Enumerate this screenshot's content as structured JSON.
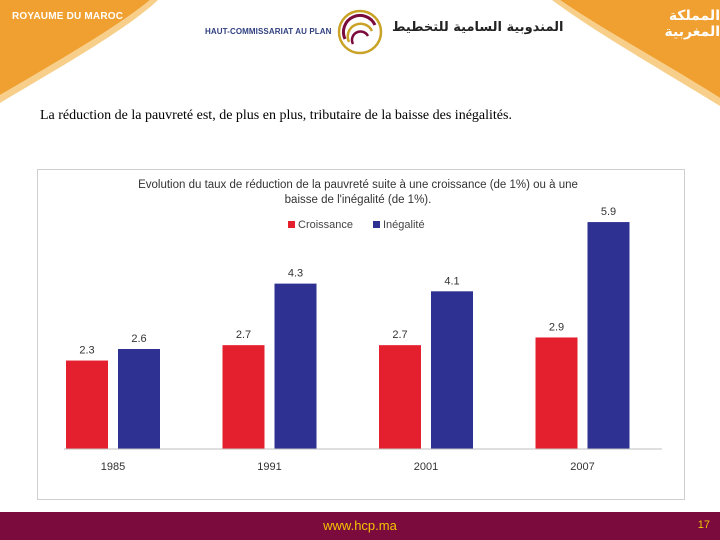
{
  "header": {
    "kingdom_fr": "ROYAUME DU MAROC",
    "kingdom_ar": "المملكة المغربية",
    "org_fr": "HAUT-COMMISSARIAT AU PLAN",
    "org_ar": "المندوبية السامية للتخطيط",
    "band_color": "#f0a030"
  },
  "slide": {
    "subtitle": "La réduction de la pauvreté est, de plus en plus, tributaire de la baisse des inégalités."
  },
  "chart_data": {
    "type": "bar",
    "title_line1": "Evolution du taux de réduction de la pauvreté suite à une croissance (de 1%) ou à une",
    "title_line2": "baisse de l'inégalité (de 1%).",
    "categories": [
      "1985",
      "1991",
      "2001",
      "2007"
    ],
    "series": [
      {
        "name": "Croissance",
        "color": "#e5202e",
        "values": [
          2.3,
          2.7,
          2.7,
          2.9
        ]
      },
      {
        "name": "Inégalité",
        "color": "#2e3192",
        "values": [
          2.6,
          4.3,
          4.1,
          5.9
        ]
      }
    ],
    "ylim": [
      0,
      6.5
    ],
    "grid": false,
    "legend": "top-left"
  },
  "footer": {
    "url": "www.hcp.ma",
    "page": "17",
    "bg_color": "#7a0b3c"
  }
}
